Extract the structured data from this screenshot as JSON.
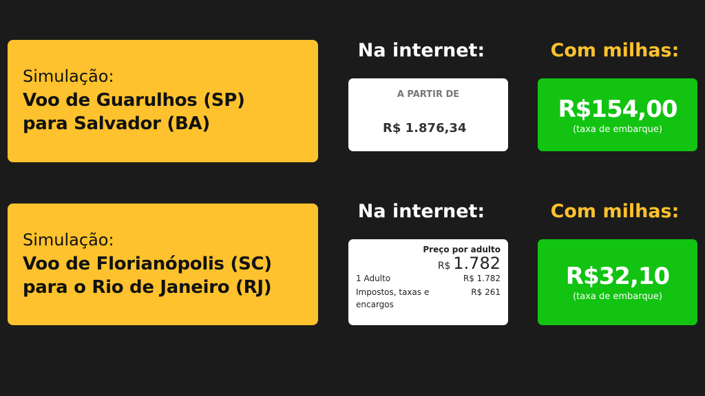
{
  "rows": [
    {
      "label": "Simulação:",
      "route_line1": "Voo de Guarulhos (SP)",
      "route_line2": "para Salvador (BA)",
      "internet_heading": "Na internet:",
      "miles_heading": "Com milhas:",
      "internet": {
        "caption": "A PARTIR DE",
        "price": "R$ 1.876,34"
      },
      "miles": {
        "price": "R$154,00",
        "note": "(taxa de embarque)"
      }
    },
    {
      "label": "Simulação:",
      "route_line1": "Voo de Florianópolis (SC)",
      "route_line2": "para o Rio de Janeiro (RJ)",
      "internet_heading": "Na internet:",
      "miles_heading": "Com milhas:",
      "internet": {
        "caption": "Preço por adulto",
        "currency": "R$",
        "price": "1.782",
        "adult_label": "1 Adulto",
        "adult_value": "R$ 1.782",
        "tax_label_1": "Impostos, taxas e",
        "tax_label_2": "encargos",
        "tax_value": "R$ 261"
      },
      "miles": {
        "price": "R$32,10",
        "note": "(taxa de embarque)"
      }
    }
  ],
  "colors": {
    "background": "#1b1b1b",
    "yellow": "#fdc22d",
    "green": "#12c312"
  }
}
